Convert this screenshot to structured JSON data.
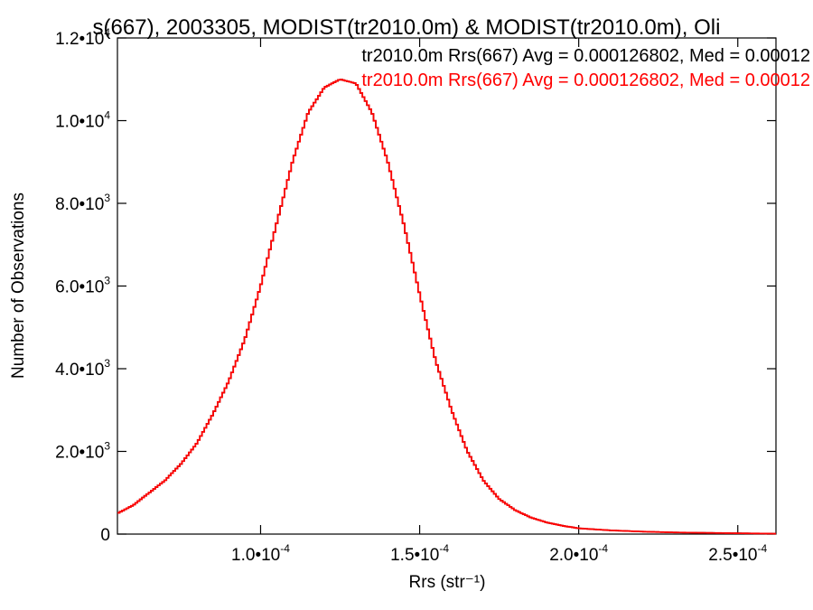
{
  "chart_data": {
    "type": "histogram",
    "title": "s(667), 2003305, MODIST(tr2010.0m) & MODIST(tr2010.0m), Oli",
    "xlabel": "Rrs (str⁻¹)",
    "ylabel": "Number of Observations",
    "xlim": [
      5.5e-05,
      0.000262
    ],
    "ylim": [
      0,
      12000
    ],
    "xticks": [
      {
        "mant": "1.0",
        "exp": "-4"
      },
      {
        "mant": "1.5",
        "exp": "-4"
      },
      {
        "mant": "2.0",
        "exp": "-4"
      },
      {
        "mant": "2.5",
        "exp": "-4"
      }
    ],
    "yticks": [
      {
        "mant": "0",
        "exp": ""
      },
      {
        "mant": "2.0",
        "exp": "3"
      },
      {
        "mant": "4.0",
        "exp": "3"
      },
      {
        "mant": "6.0",
        "exp": "3"
      },
      {
        "mant": "8.0",
        "exp": "3"
      },
      {
        "mant": "1.0",
        "exp": "4"
      },
      {
        "mant": "1.2",
        "exp": "4"
      }
    ],
    "legend_placement": "top-right",
    "series": [
      {
        "name": "tr2010.0m Rrs(667) Avg = 0.000126802, Med = 0.00012",
        "color": "#000000",
        "x": [
          5.5e-05,
          6e-05,
          6.5e-05,
          7e-05,
          7.5e-05,
          8e-05,
          8.5e-05,
          9e-05,
          9.5e-05,
          0.0001,
          0.000105,
          0.00011,
          0.000115,
          0.00012,
          0.000125,
          0.00013,
          0.000135,
          0.00014,
          0.000145,
          0.00015,
          0.000155,
          0.00016,
          0.000165,
          0.00017,
          0.000175,
          0.00018,
          0.000185,
          0.00019,
          0.000195,
          0.0002,
          0.00021,
          0.00022,
          0.00023,
          0.00024,
          0.00025,
          0.000262
        ],
        "y": [
          500,
          700,
          1000,
          1300,
          1700,
          2200,
          2900,
          3700,
          4700,
          6000,
          7500,
          9000,
          10200,
          10800,
          11000,
          10900,
          10200,
          9000,
          7500,
          5800,
          4200,
          3000,
          2000,
          1300,
          850,
          580,
          400,
          280,
          200,
          140,
          90,
          60,
          40,
          30,
          20,
          10
        ]
      },
      {
        "name": "tr2010.0m Rrs(667) Avg = 0.000126802, Med = 0.00012",
        "color": "#ff0000",
        "x": [
          5.5e-05,
          6e-05,
          6.5e-05,
          7e-05,
          7.5e-05,
          8e-05,
          8.5e-05,
          9e-05,
          9.5e-05,
          0.0001,
          0.000105,
          0.00011,
          0.000115,
          0.00012,
          0.000125,
          0.00013,
          0.000135,
          0.00014,
          0.000145,
          0.00015,
          0.000155,
          0.00016,
          0.000165,
          0.00017,
          0.000175,
          0.00018,
          0.000185,
          0.00019,
          0.000195,
          0.0002,
          0.00021,
          0.00022,
          0.00023,
          0.00024,
          0.00025,
          0.000262
        ],
        "y": [
          500,
          700,
          1000,
          1300,
          1700,
          2200,
          2900,
          3700,
          4700,
          6000,
          7500,
          9000,
          10200,
          10800,
          11000,
          10900,
          10200,
          9000,
          7500,
          5800,
          4200,
          3000,
          2000,
          1300,
          850,
          580,
          400,
          280,
          200,
          140,
          90,
          60,
          40,
          30,
          20,
          10
        ]
      }
    ]
  }
}
